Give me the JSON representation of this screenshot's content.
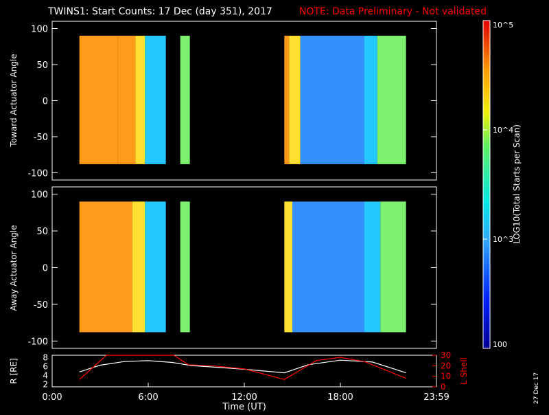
{
  "header": {
    "title": "TWINS1: Start Counts: 17 Dec (day 351), 2017",
    "note": "NOTE: Data Preliminary - Not validated",
    "note_color": "#ff0000"
  },
  "footer": {
    "date_stamp": "27 Dec 17"
  },
  "chart_data": [
    {
      "type": "heatmap",
      "panel": "toward",
      "ylabel": "Toward Actuator Angle",
      "ylim": [
        -110,
        110
      ],
      "yticks": [
        "100",
        "50",
        "0",
        "-50",
        "-100"
      ],
      "xlim_hours": [
        0,
        24
      ],
      "angle_range": [
        -88,
        90
      ],
      "data_intervals_hours": [
        [
          1.7,
          7.1
        ],
        [
          8.0,
          8.6
        ],
        [
          14.5,
          22.1
        ]
      ],
      "blocks": [
        {
          "from": 1.7,
          "to": 4.1,
          "level": "high"
        },
        {
          "from": 4.1,
          "to": 5.2,
          "level": "high"
        },
        {
          "from": 5.2,
          "to": 5.8,
          "level": "mid-high"
        },
        {
          "from": 5.8,
          "to": 7.1,
          "level": "low-mid"
        },
        {
          "from": 8.0,
          "to": 8.6,
          "level": "mid"
        },
        {
          "from": 14.5,
          "to": 14.8,
          "level": "high"
        },
        {
          "from": 14.8,
          "to": 15.5,
          "level": "mid-high"
        },
        {
          "from": 15.5,
          "to": 19.5,
          "level": "low"
        },
        {
          "from": 19.5,
          "to": 20.3,
          "level": "low-mid"
        },
        {
          "from": 20.3,
          "to": 22.1,
          "level": "mid"
        }
      ]
    },
    {
      "type": "heatmap",
      "panel": "away",
      "ylabel": "Away Actuator Angle",
      "ylim": [
        -110,
        110
      ],
      "yticks": [
        "100",
        "50",
        "0",
        "-50",
        "-100"
      ],
      "xlim_hours": [
        0,
        24
      ],
      "angle_range": [
        -88,
        90
      ],
      "data_intervals_hours": [
        [
          1.7,
          7.1
        ],
        [
          8.0,
          8.6
        ],
        [
          14.5,
          22.1
        ]
      ],
      "blocks": [
        {
          "from": 1.7,
          "to": 5.0,
          "level": "high"
        },
        {
          "from": 5.0,
          "to": 5.8,
          "level": "mid-high"
        },
        {
          "from": 5.8,
          "to": 7.1,
          "level": "low-mid"
        },
        {
          "from": 8.0,
          "to": 8.6,
          "level": "mid"
        },
        {
          "from": 14.5,
          "to": 15.0,
          "level": "mid-high"
        },
        {
          "from": 15.0,
          "to": 19.5,
          "level": "low"
        },
        {
          "from": 19.5,
          "to": 20.5,
          "level": "low-mid"
        },
        {
          "from": 20.5,
          "to": 22.1,
          "level": "mid"
        }
      ]
    },
    {
      "type": "line",
      "panel": "orbit",
      "ylabel_left": "R [RE]",
      "ylabel_right": "L Shell",
      "ylim_left": [
        1.5,
        8.5
      ],
      "yticks_left": [
        "8",
        "6",
        "4",
        "2"
      ],
      "ylim_right": [
        0,
        30
      ],
      "yticks_right": [
        "30",
        "20",
        "10",
        "0"
      ],
      "xtick_labels": [
        "0:00",
        "6:00",
        "12:00",
        "18:00",
        "23:59"
      ],
      "xtick_hours": [
        0,
        6,
        12,
        18,
        24
      ],
      "xlabel": "Time (UT)",
      "series": [
        {
          "name": "R",
          "axis": "left",
          "color": "#ffffff",
          "x": [
            1.7,
            3,
            4.5,
            6,
            7.5,
            8.7,
            10,
            12,
            14.5,
            16,
            18,
            20,
            22.1
          ],
          "y": [
            4.8,
            6.3,
            7.1,
            7.3,
            6.9,
            6.2,
            5.9,
            5.4,
            4.6,
            6.4,
            7.4,
            7.0,
            4.6
          ]
        },
        {
          "name": "L Shell",
          "axis": "right",
          "color": "#ff0000",
          "x": [
            1.7,
            3.4,
            7.6,
            8.5,
            10,
            12,
            14.5,
            16.5,
            18,
            19.5,
            22.1
          ],
          "y": [
            7,
            31,
            31,
            21,
            20,
            17,
            7,
            25,
            28,
            24,
            8
          ]
        }
      ]
    }
  ],
  "colorbar": {
    "label": "LOG10(Total Starts per Scan)",
    "tick_labels": [
      "10^5",
      "10^4",
      "10^3",
      "100"
    ],
    "range": [
      2,
      5
    ]
  },
  "colors": {
    "high": "#ff9a1a",
    "mid-high": "#ffe030",
    "mid": "#7df070",
    "low-mid": "#22c8ff",
    "low": "#3590ff"
  }
}
